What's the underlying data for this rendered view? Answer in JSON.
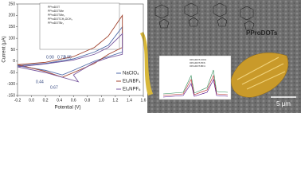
{
  "chart_data": {
    "type": "line",
    "x_label": "Potential (V)",
    "y_label": "Current (μA)",
    "xlim": [
      -0.2,
      1.6
    ],
    "xticks": [
      -0.2,
      {
        "value": 0,
        "label": "0.0"
      },
      0.2,
      0.4,
      0.6,
      0.8,
      {
        "value": 1,
        "label": "1.0"
      },
      1.2,
      1.4,
      1.6
    ],
    "ylim": [
      -150,
      250
    ],
    "yticks": [
      -150,
      -100,
      -50,
      0,
      50,
      100,
      150,
      200,
      250
    ],
    "series": [
      {
        "name": "NaClO₄",
        "color": "#4f6aa8",
        "x": [
          -0.2,
          0.2,
          0.6,
          0.9,
          1.1,
          1.3,
          1.3,
          1.1,
          0.9,
          0.6,
          0.44,
          0.2,
          -0.2
        ],
        "values": [
          -20,
          -10,
          10,
          40,
          70,
          150,
          40,
          20,
          0,
          -40,
          -60,
          -40,
          -20
        ]
      },
      {
        "name": "Et₄NBF₄",
        "color": "#a0422d",
        "x": [
          -0.2,
          0.2,
          0.6,
          0.9,
          1.1,
          1.3,
          1.3,
          1.1,
          0.9,
          0.6,
          0.44,
          0.2,
          -0.2
        ],
        "values": [
          -15,
          -5,
          20,
          60,
          110,
          200,
          60,
          30,
          -10,
          -50,
          -70,
          -45,
          -15
        ]
      },
      {
        "name": "Et₄NPF₆",
        "color": "#7a5aa0",
        "x": [
          -0.2,
          0.2,
          0.6,
          0.9,
          1.1,
          1.3,
          1.3,
          1.1,
          0.9,
          0.6,
          0.67,
          0.2,
          -0.2
        ],
        "values": [
          -25,
          -12,
          5,
          30,
          60,
          120,
          30,
          15,
          -5,
          -60,
          -90,
          -50,
          -25
        ]
      }
    ],
    "annotations": [
      "0.44",
      "0.67",
      "0.90",
      "0.73",
      "0.95"
    ],
    "legend": "lower right",
    "inset_legend": [
      "PProDOT",
      "PProDOTMe",
      "PProDOTMe₂",
      "PProDOTCH₂OCH₃",
      "PProDOTBr₂"
    ],
    "spectrum_legend": [
      "OProDOT-ClO4",
      "OProDOT-PF6",
      "OProDOT-BF4"
    ],
    "structure_label": "PProDOTs",
    "scale_bar": "5 μm"
  }
}
